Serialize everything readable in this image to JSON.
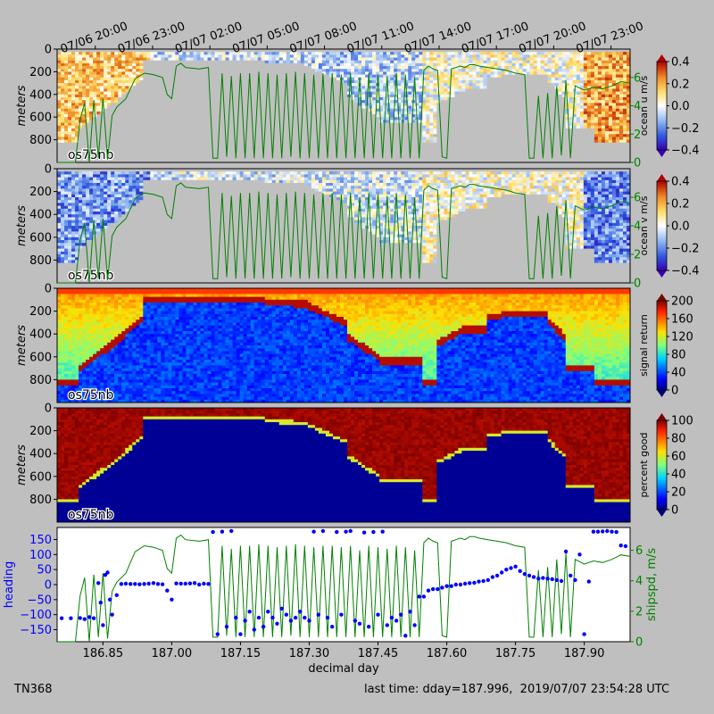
{
  "footer": {
    "cruise": "TN368",
    "last_time": "last time: dday=187.996,  2019/07/07 23:54:28 UTC"
  },
  "top_axis": {
    "labels": [
      "07/06 20:00",
      "07/06 23:00",
      "07/07 02:00",
      "07/07 05:00",
      "07/07 08:00",
      "07/07 11:00",
      "07/07 14:00",
      "07/07 17:00",
      "07/07 20:00",
      "07/07 23:00"
    ],
    "ddays": [
      186.8333,
      186.9583,
      187.0833,
      187.2083,
      187.3333,
      187.4583,
      187.5833,
      187.7083,
      187.8333,
      187.9583
    ]
  },
  "colors": {
    "shipspd_line": "#008000",
    "heading_points": "#0000ff",
    "missing": "#c0c0c0"
  },
  "chart_data": [
    {
      "type": "heatmap",
      "panel": "ocean_u",
      "ylabel": "meters",
      "yticks": [
        0,
        200,
        400,
        600,
        800
      ],
      "ylim": [
        1000,
        0
      ],
      "instrument_label": "os75nb",
      "colorbar_label": "ocean u m/s",
      "colorbar_ticks": [
        "0.4",
        "0.2",
        "0.0",
        "−0.2",
        "−0.4"
      ],
      "clim": [
        -0.4,
        0.4
      ],
      "right_axis_ticks": [
        "6",
        "4",
        "2",
        "0"
      ],
      "right_ylim": [
        0,
        8
      ]
    },
    {
      "type": "heatmap",
      "panel": "ocean_v",
      "ylabel": "meters",
      "yticks": [
        0,
        200,
        400,
        600,
        800
      ],
      "ylim": [
        1000,
        0
      ],
      "instrument_label": "os75nb",
      "colorbar_label": "ocean v m/s",
      "colorbar_ticks": [
        "0.4",
        "0.2",
        "0.0",
        "−0.2",
        "−0.4"
      ],
      "clim": [
        -0.4,
        0.4
      ],
      "right_axis_ticks": [
        "6",
        "4",
        "2",
        "0"
      ],
      "right_ylim": [
        0,
        8
      ]
    },
    {
      "type": "heatmap",
      "panel": "signal_return",
      "ylabel": "meters",
      "yticks": [
        0,
        200,
        400,
        600,
        800
      ],
      "ylim": [
        1000,
        0
      ],
      "instrument_label": "os75nb",
      "colorbar_label": "signal return",
      "colorbar_ticks": [
        "200",
        "160",
        "120",
        "80",
        "40",
        "0"
      ],
      "clim": [
        0,
        200
      ]
    },
    {
      "type": "heatmap",
      "panel": "percent_good",
      "ylabel": "meters",
      "yticks": [
        0,
        200,
        400,
        600,
        800
      ],
      "ylim": [
        1000,
        0
      ],
      "instrument_label": "os75nb",
      "colorbar_label": "percent good",
      "colorbar_ticks": [
        "100",
        "80",
        "60",
        "40",
        "20",
        "0"
      ],
      "clim": [
        0,
        100
      ]
    },
    {
      "type": "scatter",
      "panel": "heading_shipspd",
      "xlabel": "decimal day",
      "xticks": [
        "186.85",
        "187.00",
        "187.15",
        "187.30",
        "187.45",
        "187.60",
        "187.75",
        "187.90"
      ],
      "xtick_values": [
        186.85,
        187.0,
        187.15,
        187.3,
        187.45,
        187.6,
        187.75,
        187.9
      ],
      "xlim": [
        186.75,
        188.0
      ],
      "ylabel": "heading",
      "yticks": [
        "150",
        "100",
        "50",
        "0",
        "−50",
        "−100",
        "−150"
      ],
      "ylim": [
        -190,
        190
      ],
      "right_ylabel": "shipspd, m/s",
      "right_axis_ticks": [
        "6",
        "4",
        "2",
        "0"
      ],
      "right_ylim": [
        0,
        7.5
      ],
      "series": [
        {
          "name": "heading",
          "kind": "scatter"
        },
        {
          "name": "shipspd",
          "kind": "line"
        }
      ]
    }
  ],
  "shipspd": {
    "x": [
      186.75,
      186.79,
      186.8,
      186.81,
      186.82,
      186.83,
      186.84,
      186.85,
      186.86,
      186.87,
      186.88,
      186.9,
      186.92,
      186.94,
      186.96,
      186.98,
      186.99,
      187.0,
      187.01,
      187.02,
      187.03,
      187.06,
      187.08,
      187.09,
      187.1,
      187.11,
      187.12,
      187.13,
      187.14,
      187.15,
      187.16,
      187.17,
      187.18,
      187.19,
      187.2,
      187.21,
      187.22,
      187.23,
      187.24,
      187.25,
      187.26,
      187.27,
      187.28,
      187.29,
      187.3,
      187.31,
      187.32,
      187.33,
      187.34,
      187.35,
      187.36,
      187.37,
      187.38,
      187.39,
      187.4,
      187.41,
      187.42,
      187.43,
      187.44,
      187.45,
      187.46,
      187.47,
      187.48,
      187.49,
      187.5,
      187.51,
      187.52,
      187.53,
      187.54,
      187.55,
      187.56,
      187.57,
      187.58,
      187.59,
      187.6,
      187.61,
      187.62,
      187.63,
      187.64,
      187.65,
      187.66,
      187.67,
      187.69,
      187.71,
      187.73,
      187.75,
      187.77,
      187.78,
      187.79,
      187.8,
      187.81,
      187.82,
      187.83,
      187.84,
      187.85,
      187.86,
      187.87,
      187.88,
      187.9,
      187.92,
      187.94,
      187.96,
      187.98,
      188.0
    ],
    "y": [
      0,
      0,
      3.0,
      4.2,
      0,
      4.4,
      0.3,
      4.5,
      0.2,
      3.3,
      3.9,
      4.5,
      5.9,
      6.3,
      6.2,
      6.0,
      4.8,
      4.5,
      6.8,
      7.0,
      6.7,
      6.6,
      6.7,
      0.3,
      0.3,
      6.3,
      0.4,
      6.1,
      0.3,
      6.3,
      0.3,
      6.3,
      0.3,
      6.4,
      0.3,
      6.3,
      0.3,
      6.2,
      0.3,
      6.3,
      0.4,
      6.4,
      0.3,
      6.3,
      0.3,
      6.2,
      0.3,
      6.3,
      0.3,
      6.3,
      0.3,
      6.2,
      0.3,
      6.3,
      0.3,
      6.0,
      0.3,
      6.3,
      0.3,
      6.2,
      0.3,
      6.1,
      0.3,
      6.3,
      0.3,
      6.2,
      0.3,
      6.0,
      0.3,
      6.5,
      6.8,
      6.6,
      6.5,
      0.4,
      0.3,
      6.6,
      6.7,
      6.8,
      6.7,
      6.9,
      6.9,
      6.8,
      6.7,
      6.6,
      6.5,
      6.3,
      6.2,
      0.3,
      0.3,
      4.7,
      0.3,
      4.9,
      0.3,
      5.4,
      0.5,
      5.8,
      0.3,
      5.4,
      5.1,
      5.3,
      5.2,
      5.4,
      5.7,
      5.6
    ]
  },
  "heading": {
    "x": [
      186.76,
      186.78,
      186.8,
      186.81,
      186.82,
      186.83,
      186.84,
      186.845,
      186.85,
      186.855,
      186.86,
      186.865,
      186.87,
      186.88,
      186.89,
      186.9,
      186.91,
      186.92,
      186.93,
      186.94,
      186.95,
      186.96,
      186.97,
      186.98,
      186.99,
      187.0,
      187.01,
      187.02,
      187.03,
      187.04,
      187.05,
      187.06,
      187.07,
      187.08,
      187.09,
      187.1,
      187.11,
      187.12,
      187.13,
      187.14,
      187.15,
      187.16,
      187.17,
      187.18,
      187.19,
      187.2,
      187.21,
      187.22,
      187.23,
      187.24,
      187.25,
      187.26,
      187.27,
      187.28,
      187.29,
      187.3,
      187.31,
      187.32,
      187.33,
      187.34,
      187.35,
      187.36,
      187.37,
      187.38,
      187.39,
      187.4,
      187.41,
      187.42,
      187.43,
      187.44,
      187.45,
      187.46,
      187.47,
      187.48,
      187.49,
      187.5,
      187.51,
      187.52,
      187.53,
      187.54,
      187.55,
      187.56,
      187.57,
      187.58,
      187.59,
      187.6,
      187.61,
      187.62,
      187.63,
      187.64,
      187.65,
      187.66,
      187.67,
      187.68,
      187.69,
      187.7,
      187.71,
      187.72,
      187.73,
      187.74,
      187.75,
      187.76,
      187.77,
      187.78,
      187.79,
      187.8,
      187.81,
      187.82,
      187.83,
      187.84,
      187.85,
      187.86,
      187.87,
      187.88,
      187.89,
      187.9,
      187.91,
      187.92,
      187.93,
      187.94,
      187.95,
      187.96,
      187.97,
      187.98,
      187.99
    ],
    "y": [
      -112,
      -112,
      -111,
      -115,
      -108,
      -112,
      5,
      -60,
      -135,
      32,
      40,
      -50,
      -100,
      -35,
      2,
      3,
      2,
      2,
      1,
      2,
      3,
      5,
      2,
      1,
      -20,
      -50,
      4,
      3,
      3,
      4,
      5,
      0,
      3,
      2,
      175,
      -165,
      176,
      -140,
      178,
      -110,
      -165,
      -120,
      -90,
      -150,
      -110,
      -140,
      -90,
      -110,
      -130,
      -80,
      -100,
      -120,
      -110,
      -90,
      -110,
      -120,
      176,
      -100,
      178,
      -110,
      -140,
      175,
      -100,
      176,
      178,
      -120,
      -130,
      173,
      -140,
      175,
      -100,
      176,
      -135,
      -110,
      -120,
      -100,
      -170,
      -90,
      -135,
      -40,
      -40,
      -20,
      -15,
      -15,
      -10,
      -5,
      -5,
      0,
      0,
      3,
      5,
      6,
      10,
      12,
      15,
      25,
      30,
      40,
      50,
      55,
      60,
      45,
      35,
      30,
      25,
      20,
      22,
      20,
      18,
      15,
      12,
      110,
      30,
      15,
      100,
      -165,
      10,
      176,
      176,
      177,
      178,
      176,
      175,
      130,
      128
    ]
  }
}
